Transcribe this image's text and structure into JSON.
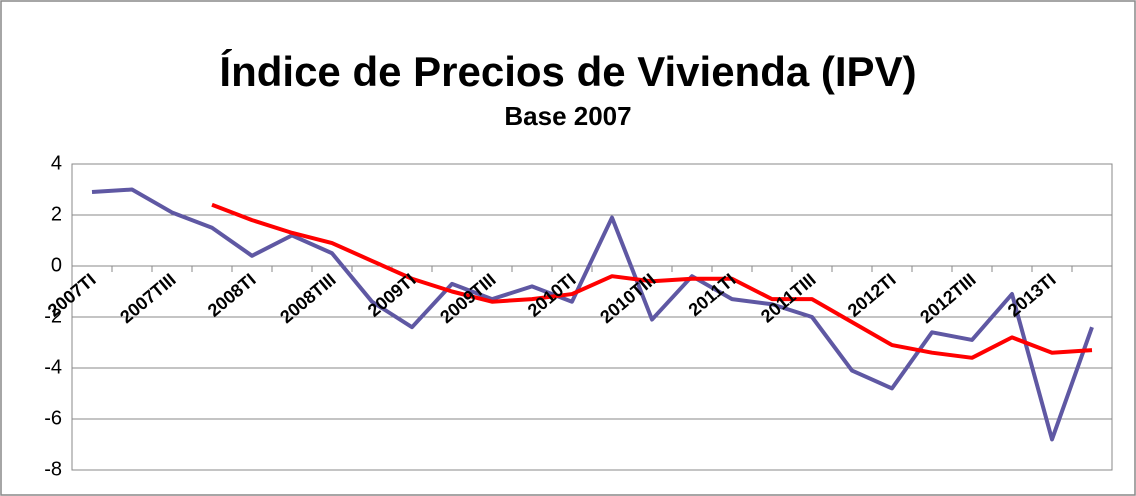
{
  "chart_data": {
    "type": "line",
    "title": "Índice de Precios de Vivienda (IPV)",
    "subtitle": "Base 2007",
    "categories": [
      "2007TI",
      null,
      "2007TIII",
      null,
      "2008TI",
      null,
      "2008TIII",
      null,
      "2009TI",
      null,
      "2009TIII",
      null,
      "2010TI",
      null,
      "2010TIII",
      null,
      "2011TI",
      null,
      "2011TIII",
      null,
      "2012TI",
      null,
      "2012TIII",
      null,
      "2013TI",
      null
    ],
    "series": [
      {
        "color": "#5f58a3",
        "values": [
          2.9,
          3.0,
          2.1,
          1.5,
          0.4,
          1.2,
          0.5,
          -1.4,
          -2.4,
          -0.7,
          -1.3,
          -0.8,
          -1.4,
          1.9,
          -2.1,
          -0.4,
          -1.3,
          -1.5,
          -2.0,
          -4.1,
          -4.8,
          -2.6,
          -2.9,
          -1.1,
          -6.8,
          -2.4
        ]
      },
      {
        "color": "#ff0000",
        "values": [
          null,
          null,
          null,
          2.4,
          1.8,
          1.3,
          0.9,
          0.2,
          -0.5,
          -1.0,
          -1.4,
          -1.3,
          -1.1,
          -0.4,
          -0.6,
          -0.5,
          -0.5,
          -1.3,
          -1.3,
          -2.2,
          -3.1,
          -3.4,
          -3.6,
          -2.8,
          -3.4,
          -3.3
        ]
      }
    ],
    "ylim": [
      -8,
      4
    ],
    "yticks": [
      -8,
      -6,
      -4,
      -2,
      0,
      2,
      4
    ],
    "grid": true
  }
}
